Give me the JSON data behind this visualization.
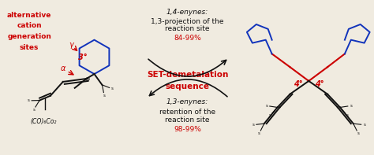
{
  "bg_color": "#f0ebe0",
  "left_label_lines": [
    "alternative",
    "cation",
    "generation",
    "sites"
  ],
  "left_label_color": "#cc0000",
  "gamma_label": "γ",
  "alpha_label": "α",
  "degree3_label": "3°",
  "degree3_color": "#cc0000",
  "co_label": "(CO)₆Co₂",
  "top_text_lines": [
    "1,4-enynes:",
    "1,3-projection of the",
    "reaction site",
    "84-99%"
  ],
  "bottom_text_lines": [
    "1,3-enynes:",
    "retention of the",
    "reaction site",
    "98-99%"
  ],
  "center_label_line1": "SET-demetalation",
  "center_label_line2": "sequence",
  "center_label_color": "#cc0000",
  "degree4_label": "4°",
  "degree4_color": "#cc0000",
  "red_color": "#cc0000",
  "blue_color": "#1133bb",
  "black_color": "#111111",
  "font_size_main": 6.5,
  "font_size_center": 7.5
}
